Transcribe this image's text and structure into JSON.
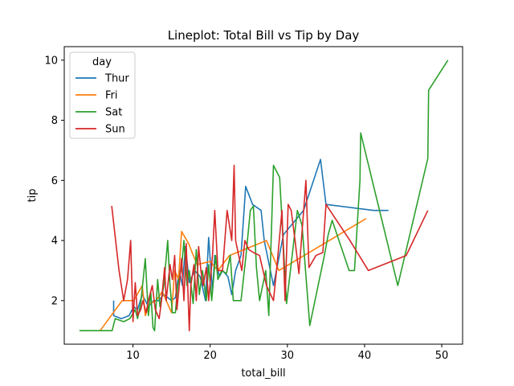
{
  "chart_data": {
    "type": "line",
    "title": "Lineplot: Total Bill vs Tip by Day",
    "xlabel": "total_bill",
    "ylabel": "tip",
    "xlim": [
      1.1,
      52.7
    ],
    "ylim": [
      0.55,
      10.45
    ],
    "xticks": [
      10,
      20,
      30,
      40,
      50
    ],
    "yticks": [
      2,
      4,
      6,
      8,
      10
    ],
    "grid": false,
    "legend": {
      "title": "day",
      "placement": "top-left"
    },
    "series": [
      {
        "name": "Thur",
        "color": "#1f77b4",
        "points": [
          [
            7.5,
            2.0
          ],
          [
            7.5,
            1.5
          ],
          [
            8.5,
            1.4
          ],
          [
            9.5,
            1.5
          ],
          [
            10.1,
            1.8
          ],
          [
            10.6,
            1.7
          ],
          [
            11.2,
            2.2
          ],
          [
            12.0,
            1.8
          ],
          [
            12.7,
            2.0
          ],
          [
            13.3,
            2.0
          ],
          [
            14.0,
            2.2
          ],
          [
            15.0,
            2.0
          ],
          [
            15.5,
            2.1
          ],
          [
            16.0,
            3.0
          ],
          [
            16.4,
            2.5
          ],
          [
            16.8,
            3.8
          ],
          [
            17.3,
            2.6
          ],
          [
            18.0,
            3.0
          ],
          [
            18.7,
            2.8
          ],
          [
            19.4,
            2.0
          ],
          [
            19.8,
            4.1
          ],
          [
            20.3,
            2.3
          ],
          [
            20.6,
            3.5
          ],
          [
            21.2,
            2.8
          ],
          [
            21.6,
            3.0
          ],
          [
            22.3,
            2.8
          ],
          [
            22.8,
            2.2
          ],
          [
            23.3,
            3.0
          ],
          [
            24.0,
            3.5
          ],
          [
            24.6,
            5.8
          ],
          [
            25.5,
            5.2
          ],
          [
            26.6,
            5.0
          ],
          [
            27.0,
            4.0
          ],
          [
            28.2,
            2.5
          ],
          [
            29.5,
            4.2
          ],
          [
            32.1,
            5.0
          ],
          [
            34.3,
            6.7
          ],
          [
            35.0,
            5.2
          ],
          [
            41.2,
            5.0
          ],
          [
            43.1,
            5.0
          ]
        ]
      },
      {
        "name": "Fri",
        "color": "#ff7f0e",
        "points": [
          [
            5.75,
            1.0
          ],
          [
            8.6,
            2.0
          ],
          [
            10.1,
            2.0
          ],
          [
            11.2,
            2.5
          ],
          [
            11.6,
            1.5
          ],
          [
            12.2,
            1.9
          ],
          [
            13.0,
            2.0
          ],
          [
            13.8,
            2.3
          ],
          [
            15.0,
            1.6
          ],
          [
            15.4,
            3.0
          ],
          [
            15.9,
            2.7
          ],
          [
            16.3,
            4.3
          ],
          [
            17.2,
            3.9
          ],
          [
            18.3,
            3.2
          ],
          [
            20.0,
            3.3
          ],
          [
            21.0,
            3.0
          ],
          [
            22.5,
            3.5
          ],
          [
            27.3,
            4.0
          ],
          [
            28.9,
            3.0
          ],
          [
            40.2,
            4.73
          ]
        ]
      },
      {
        "name": "Sat",
        "color": "#2ca02c",
        "points": [
          [
            3.07,
            1.0
          ],
          [
            5.5,
            1.0
          ],
          [
            7.3,
            1.0
          ],
          [
            7.7,
            1.4
          ],
          [
            8.8,
            1.3
          ],
          [
            9.6,
            1.4
          ],
          [
            10.3,
            1.7
          ],
          [
            10.6,
            1.4
          ],
          [
            11.0,
            1.9
          ],
          [
            11.6,
            3.4
          ],
          [
            12.0,
            1.5
          ],
          [
            12.3,
            2.3
          ],
          [
            12.6,
            1.1
          ],
          [
            12.8,
            1.0
          ],
          [
            13.2,
            2.7
          ],
          [
            13.5,
            1.8
          ],
          [
            14.0,
            2.5
          ],
          [
            14.5,
            4.0
          ],
          [
            14.8,
            2.5
          ],
          [
            15.1,
            1.6
          ],
          [
            15.5,
            1.6
          ],
          [
            15.8,
            2.5
          ],
          [
            16.3,
            3.1
          ],
          [
            16.6,
            4.0
          ],
          [
            17.0,
            2.5
          ],
          [
            17.3,
            3.0
          ],
          [
            17.8,
            1.9
          ],
          [
            18.2,
            3.7
          ],
          [
            18.6,
            2.2
          ],
          [
            19.0,
            3.0
          ],
          [
            19.5,
            2.0
          ],
          [
            19.8,
            3.2
          ],
          [
            20.2,
            2.0
          ],
          [
            20.7,
            3.5
          ],
          [
            21.0,
            2.7
          ],
          [
            21.5,
            3.0
          ],
          [
            22.1,
            2.9
          ],
          [
            22.6,
            3.5
          ],
          [
            23.0,
            2.0
          ],
          [
            23.5,
            2.0
          ],
          [
            24.0,
            2.0
          ],
          [
            24.6,
            3.4
          ],
          [
            25.2,
            5.0
          ],
          [
            25.6,
            5.15
          ],
          [
            26.0,
            3.1
          ],
          [
            26.4,
            2.0
          ],
          [
            27.2,
            3.0
          ],
          [
            27.6,
            1.5
          ],
          [
            28.2,
            6.5
          ],
          [
            29.0,
            6.1
          ],
          [
            29.9,
            1.9
          ],
          [
            31.3,
            5.0
          ],
          [
            31.9,
            4.5
          ],
          [
            32.9,
            1.17
          ],
          [
            34.8,
            3.5
          ],
          [
            35.3,
            4.2
          ],
          [
            35.8,
            4.67
          ],
          [
            38.0,
            3.0
          ],
          [
            38.7,
            3.0
          ],
          [
            39.4,
            6.0
          ],
          [
            39.5,
            7.58
          ],
          [
            44.3,
            2.5
          ],
          [
            48.2,
            6.73
          ],
          [
            48.3,
            9.0
          ],
          [
            50.8,
            10.0
          ]
        ]
      },
      {
        "name": "Sun",
        "color": "#d62728",
        "points": [
          [
            7.25,
            5.15
          ],
          [
            8.2,
            3.0
          ],
          [
            8.8,
            2.0
          ],
          [
            9.3,
            2.7
          ],
          [
            9.7,
            4.0
          ],
          [
            10.0,
            1.3
          ],
          [
            10.3,
            2.6
          ],
          [
            10.6,
            1.5
          ],
          [
            11.0,
            1.7
          ],
          [
            11.3,
            2.0
          ],
          [
            11.7,
            1.6
          ],
          [
            12.0,
            2.0
          ],
          [
            12.5,
            2.5
          ],
          [
            12.9,
            1.7
          ],
          [
            13.4,
            1.4
          ],
          [
            13.7,
            2.0
          ],
          [
            14.1,
            3.1
          ],
          [
            14.3,
            2.0
          ],
          [
            14.8,
            3.2
          ],
          [
            15.1,
            2.7
          ],
          [
            15.4,
            3.5
          ],
          [
            15.7,
            1.7
          ],
          [
            16.0,
            2.5
          ],
          [
            16.3,
            3.4
          ],
          [
            16.6,
            2.0
          ],
          [
            16.9,
            3.9
          ],
          [
            17.3,
            1.0
          ],
          [
            17.5,
            2.5
          ],
          [
            17.9,
            3.2
          ],
          [
            18.2,
            2.0
          ],
          [
            18.5,
            3.8
          ],
          [
            18.8,
            3.0
          ],
          [
            19.1,
            2.5
          ],
          [
            19.5,
            3.1
          ],
          [
            19.8,
            2.0
          ],
          [
            20.3,
            3.5
          ],
          [
            20.6,
            5.0
          ],
          [
            21.0,
            3.0
          ],
          [
            21.6,
            3.0
          ],
          [
            22.2,
            5.0
          ],
          [
            22.8,
            4.0
          ],
          [
            23.1,
            6.5
          ],
          [
            23.3,
            4.0
          ],
          [
            23.7,
            3.5
          ],
          [
            24.1,
            3.0
          ],
          [
            24.5,
            4.0
          ],
          [
            25.0,
            3.7
          ],
          [
            25.6,
            3.6
          ],
          [
            26.4,
            3.5
          ],
          [
            27.3,
            2.5
          ],
          [
            28.2,
            2.0
          ],
          [
            28.6,
            3.0
          ],
          [
            29.3,
            5.0
          ],
          [
            29.7,
            2.0
          ],
          [
            30.1,
            5.2
          ],
          [
            30.5,
            5.0
          ],
          [
            31.0,
            4.0
          ],
          [
            31.5,
            2.9
          ],
          [
            32.4,
            6.0
          ],
          [
            32.8,
            3.1
          ],
          [
            33.7,
            3.5
          ],
          [
            34.6,
            3.6
          ],
          [
            35.0,
            5.2
          ],
          [
            38.1,
            4.0
          ],
          [
            40.5,
            3.0
          ],
          [
            45.4,
            3.5
          ],
          [
            48.2,
            5.0
          ]
        ]
      }
    ]
  }
}
